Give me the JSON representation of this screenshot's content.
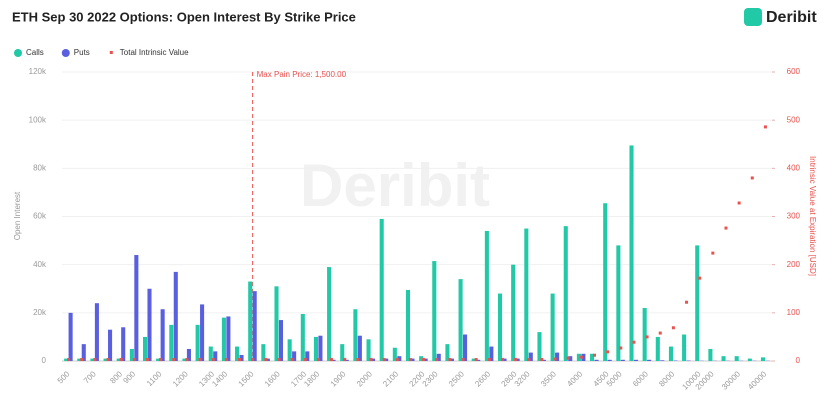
{
  "chart_data": {
    "type": "bar",
    "title": "ETH Sep 30 2022 Options: Open Interest By Strike Price",
    "brand": "Deribit",
    "y_label": "Open Interest",
    "y2_label": "Intrinsic Value at Expiration [USD]",
    "max_pain": {
      "value": 1500,
      "label": "Max Pain Price: 1,500.00"
    },
    "categories": [
      "500",
      null,
      "700",
      null,
      "800",
      "900",
      null,
      "1100",
      null,
      "1200",
      null,
      "1300",
      "1400",
      null,
      "1500",
      null,
      "1600",
      null,
      "1700",
      "1800",
      null,
      "1900",
      null,
      "2000",
      null,
      "2100",
      null,
      "2200",
      "2300",
      null,
      "2500",
      null,
      "2600",
      null,
      "2800",
      "3200",
      null,
      "3500",
      null,
      "4000",
      null,
      "4500",
      "5000",
      null,
      "6000",
      null,
      "8000",
      null,
      "10000",
      "20000",
      null,
      "30000",
      null,
      "40000"
    ],
    "series": [
      {
        "name": "Calls",
        "color": "#22c9a6",
        "values": [
          1000,
          1000,
          1000,
          1000,
          1000,
          5000,
          10000,
          1000,
          15000,
          1000,
          15000,
          6000,
          18000,
          6000,
          33000,
          7000,
          31000,
          9000,
          19500,
          10000,
          39000,
          7000,
          21500,
          9000,
          59000,
          5500,
          29500,
          2000,
          41500,
          7000,
          34000,
          1000,
          54000,
          28000,
          40000,
          55000,
          12000,
          28000,
          56000,
          3000,
          3000,
          65500,
          48000,
          89500,
          22000,
          10000,
          6000,
          11000,
          48000,
          5000,
          2000,
          2000,
          1000,
          1500
        ]
      },
      {
        "name": "Puts",
        "color": "#5a5fe0",
        "values": [
          20000,
          7000,
          24000,
          13000,
          14000,
          44000,
          30000,
          21500,
          37000,
          5000,
          23500,
          4000,
          18500,
          2500,
          29000,
          1000,
          17000,
          4000,
          4000,
          10500,
          500,
          500,
          10500,
          1000,
          1000,
          2000,
          1000,
          1000,
          3000,
          1000,
          11000,
          500,
          6000,
          1000,
          1000,
          3500,
          500,
          3500,
          2000,
          3000,
          500,
          500,
          500,
          500,
          500,
          300,
          200,
          200,
          100,
          100,
          100,
          100,
          100,
          100
        ]
      },
      {
        "name": "Total Intrinsic Value",
        "color": "#e8524f",
        "axis": "y2",
        "values": [
          3,
          3,
          3,
          3,
          3,
          3,
          3,
          3,
          3,
          3,
          3,
          3,
          3,
          3,
          3,
          3,
          3,
          3,
          3,
          3,
          3,
          3,
          3,
          3,
          3,
          3,
          3,
          3,
          3,
          3,
          3,
          3,
          3,
          3,
          3,
          3,
          3,
          4,
          6,
          8,
          12,
          19,
          27,
          39,
          50,
          58,
          69,
          122,
          172,
          224,
          276,
          328,
          380,
          486
        ]
      }
    ],
    "ylim": [
      0,
      120000
    ],
    "yticks": [
      0,
      {
        "value": 20000,
        "label": "20k"
      },
      {
        "value": 40000,
        "label": "40k"
      },
      {
        "value": 60000,
        "label": "60k"
      },
      {
        "value": 80000,
        "label": "80k"
      },
      {
        "value": 100000,
        "label": "100k"
      },
      {
        "value": 120000,
        "label": "120k"
      }
    ],
    "y2lim": [
      0,
      600
    ],
    "y2ticks": [
      0,
      100,
      200,
      300,
      400,
      500,
      600
    ],
    "legend": "top-left"
  }
}
